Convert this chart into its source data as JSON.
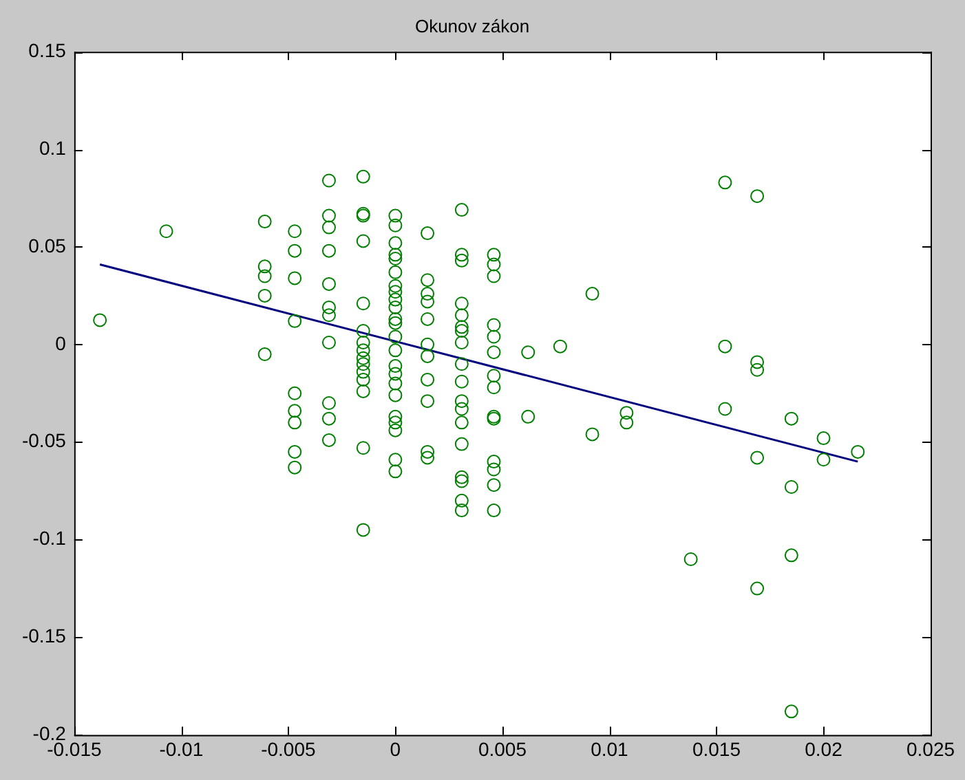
{
  "chart_data": {
    "type": "scatter",
    "title": "Okunov zákon",
    "marker": "circle",
    "grid": false,
    "legend": false,
    "xlim": [
      -0.015,
      0.025
    ],
    "xticks": [
      -0.015,
      -0.01,
      -0.005,
      0,
      0.005,
      0.01,
      0.015,
      0.02,
      0.025
    ],
    "ylim": [
      -0.2,
      0.15
    ],
    "yticks": [
      -0.2,
      -0.15,
      -0.1,
      -0.05,
      0,
      0.05,
      0.1,
      0.15
    ],
    "series": [
      {
        "color": "#007f00",
        "x": [
          -0.0138,
          -0.0107,
          -0.0061,
          -0.0061,
          -0.0061,
          -0.0061,
          -0.0061,
          -0.0047,
          -0.0047,
          -0.0047,
          -0.0047,
          -0.0047,
          -0.0047,
          -0.0047,
          -0.0047,
          -0.0047,
          -0.0031,
          -0.0031,
          -0.0031,
          -0.0031,
          -0.0031,
          -0.0031,
          -0.0031,
          -0.0031,
          -0.0031,
          -0.0031,
          -0.0031,
          -0.0015,
          -0.0015,
          -0.0015,
          -0.0015,
          -0.0015,
          -0.0015,
          -0.0015,
          -0.0015,
          -0.0015,
          -0.0015,
          -0.0015,
          -0.0015,
          -0.0015,
          -0.0015,
          -0.0015,
          0,
          0,
          0,
          0,
          0,
          0,
          0,
          0,
          0,
          0,
          0,
          0,
          0,
          0,
          0,
          0,
          0,
          0,
          0,
          0,
          0,
          0,
          0,
          0.0015,
          0.0015,
          0.0015,
          0.0015,
          0.0015,
          0.0015,
          0.0015,
          0.0015,
          0.0015,
          0.0015,
          0.0015,
          0.0031,
          0.0031,
          0.0031,
          0.0031,
          0.0031,
          0.0031,
          0.0031,
          0.0031,
          0.0031,
          0.0031,
          0.0031,
          0.0031,
          0.0031,
          0.0031,
          0.0031,
          0.0031,
          0.0031,
          0.0031,
          0.0046,
          0.0046,
          0.0046,
          0.0046,
          0.0046,
          0.0046,
          0.0046,
          0.0046,
          0.0046,
          0.0046,
          0.0046,
          0.0046,
          0.0046,
          0.0046,
          0.0062,
          0.0062,
          0.0077,
          0.0092,
          0.0092,
          0.0108,
          0.0108,
          0.0138,
          0.0154,
          0.0154,
          0.0154,
          0.0169,
          0.0169,
          0.0169,
          0.0169,
          0.0169,
          0.0185,
          0.0185,
          0.0185,
          0.0185,
          0.02,
          0.02,
          0.0216
        ],
        "values": [
          0.0125,
          0.058,
          0.063,
          0.04,
          0.035,
          0.025,
          -0.005,
          0.058,
          0.048,
          0.034,
          0.012,
          -0.025,
          -0.034,
          -0.04,
          -0.055,
          -0.063,
          0.084,
          0.066,
          0.06,
          0.048,
          0.031,
          0.019,
          0.015,
          0.001,
          -0.03,
          -0.038,
          -0.049,
          0.086,
          0.067,
          0.066,
          0.053,
          0.021,
          0.007,
          0.001,
          -0.003,
          -0.007,
          -0.01,
          -0.014,
          -0.018,
          -0.024,
          -0.053,
          -0.095,
          0.066,
          0.061,
          0.052,
          0.046,
          0.044,
          0.037,
          0.03,
          0.027,
          0.023,
          0.019,
          0.013,
          0.011,
          0.004,
          -0.003,
          -0.011,
          -0.015,
          -0.02,
          -0.026,
          -0.037,
          -0.04,
          -0.044,
          -0.059,
          -0.065,
          0.057,
          0.033,
          0.026,
          0.022,
          0.013,
          0,
          -0.006,
          -0.018,
          -0.029,
          -0.055,
          -0.058,
          0.069,
          0.046,
          0.043,
          0.021,
          0.015,
          0.009,
          0.007,
          0.001,
          -0.01,
          -0.019,
          -0.029,
          -0.033,
          -0.04,
          -0.051,
          -0.068,
          -0.07,
          -0.08,
          -0.085,
          0.046,
          0.041,
          0.035,
          0.01,
          0.004,
          -0.004,
          -0.016,
          -0.022,
          -0.037,
          -0.038,
          -0.06,
          -0.064,
          -0.072,
          -0.085,
          -0.004,
          -0.037,
          -0.001,
          0.026,
          -0.046,
          -0.035,
          -0.04,
          -0.11,
          0.083,
          -0.001,
          -0.033,
          0.076,
          -0.009,
          -0.013,
          -0.058,
          -0.125,
          -0.038,
          -0.073,
          -0.108,
          -0.188,
          -0.048,
          -0.059,
          -0.055
        ]
      },
      {
        "type": "line",
        "color": "#00007f",
        "line_style": "solid",
        "marker": "none",
        "x": [
          -0.0138,
          0.0216
        ],
        "values": [
          0.041,
          -0.06
        ]
      }
    ]
  }
}
